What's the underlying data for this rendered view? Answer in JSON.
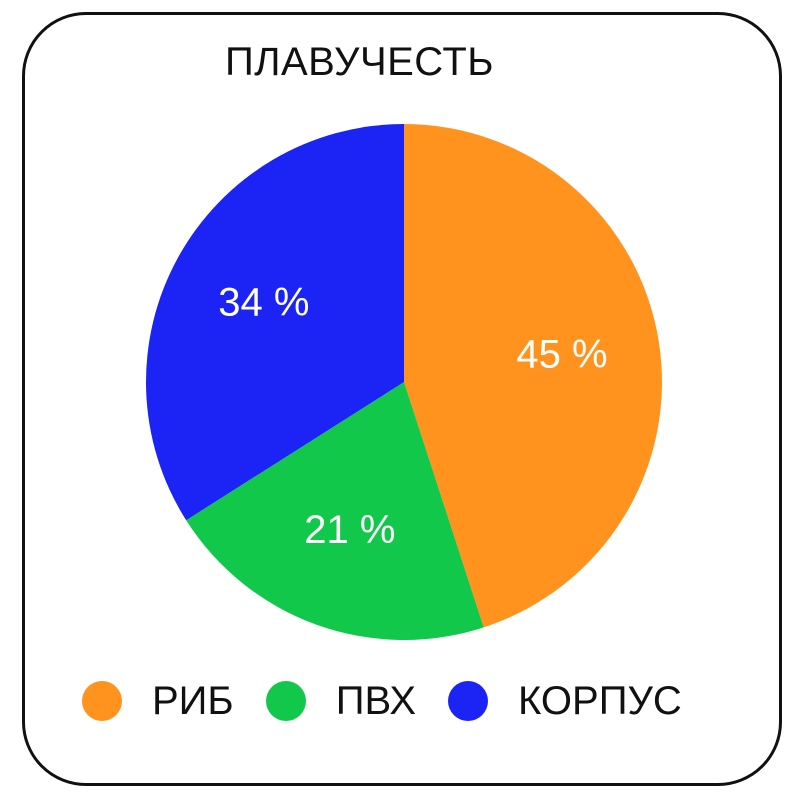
{
  "chart_data": {
    "type": "pie",
    "title": "ПЛАВУЧЕСТЬ",
    "slices": [
      {
        "name": "РИБ",
        "value": 45,
        "label": "45 %",
        "color": "#FF931E"
      },
      {
        "name": "ПВХ",
        "value": 21,
        "label": "21 %",
        "color": "#11C84A"
      },
      {
        "name": "КОРПУС",
        "value": 34,
        "label": "34 %",
        "color": "#1B24F5"
      }
    ],
    "legend_position": "bottom"
  }
}
